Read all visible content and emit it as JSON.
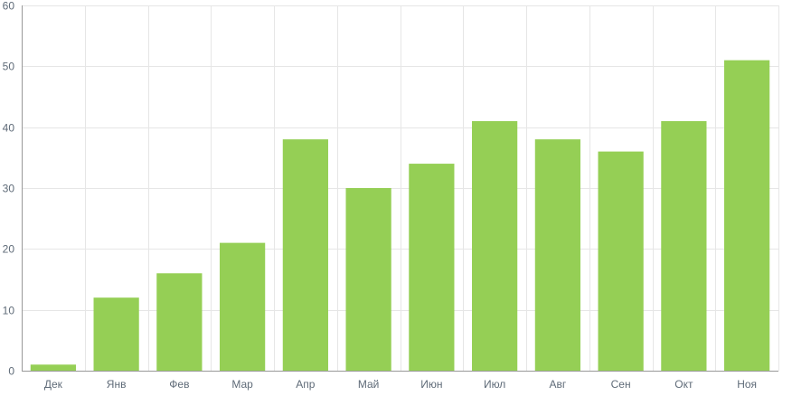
{
  "chart_data": {
    "type": "bar",
    "categories": [
      "Дек",
      "Янв",
      "Фев",
      "Мар",
      "Апр",
      "Май",
      "Июн",
      "Июл",
      "Авг",
      "Сен",
      "Окт",
      "Ноя"
    ],
    "values": [
      1,
      12,
      16,
      21,
      38,
      30,
      34,
      41,
      38,
      36,
      41,
      51
    ],
    "ylim": [
      0,
      60
    ],
    "yticks": [
      0,
      10,
      20,
      30,
      40,
      50,
      60
    ],
    "grid": true,
    "colors": {
      "bar": "#95cf55",
      "grid": "#e6e6e6",
      "axis": "#999999",
      "tick_text": "#5f6b78"
    }
  }
}
